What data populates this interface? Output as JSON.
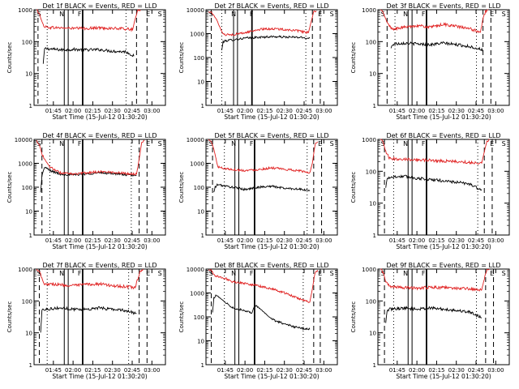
{
  "chart_data": [
    {
      "type": "line",
      "title": "Det 1f BLACK = Events, RED = LLD",
      "ylabel": "Counts/sec",
      "xlabel": "Start Time (15-Jul-12 01:30:20)",
      "xticks": [
        "01:45",
        "02:00",
        "02:15",
        "02:30",
        "02:45",
        "03:00"
      ],
      "xtick_values": [
        14.7,
        29.7,
        44.7,
        59.7,
        74.7,
        89.7
      ],
      "xlim": [
        0,
        100
      ],
      "yscale": "log",
      "ylim": [
        1,
        1000
      ],
      "yticks": [
        "1",
        "10",
        "100",
        "1000"
      ],
      "markers": [
        "S",
        "N",
        "F",
        "E",
        "S"
      ],
      "series": [
        {
          "name": "BLACK = Events",
          "color": "#000000",
          "x": [
            7,
            8,
            10,
            20,
            30,
            40,
            50,
            60,
            70,
            76
          ],
          "values": [
            20,
            60,
            60,
            55,
            57,
            55,
            56,
            50,
            48,
            35
          ]
        },
        {
          "name": "RED = LLD",
          "color": "#e02020",
          "x": [
            2,
            4,
            6,
            8,
            10,
            20,
            30,
            40,
            50,
            60,
            70,
            75,
            77,
            79,
            81
          ],
          "values": [
            1000,
            800,
            400,
            300,
            280,
            270,
            260,
            260,
            270,
            260,
            250,
            240,
            500,
            1000,
            1000
          ]
        }
      ],
      "vlines": {
        "dashed": [
          3,
          78,
          86
        ],
        "dotted": [
          10,
          70
        ],
        "solid": [
          23,
          26,
          37
        ]
      }
    },
    {
      "type": "line",
      "title": "Det 2f BLACK = Events, RED = LLD",
      "ylabel": "Counts/sec",
      "xlabel": "Start Time (15-Jul-12 01:30:20)",
      "xticks": [
        "01:45",
        "02:00",
        "02:15",
        "02:30",
        "02:45",
        "03:00"
      ],
      "xtick_values": [
        14.7,
        29.7,
        44.7,
        59.7,
        74.7,
        89.7
      ],
      "xlim": [
        0,
        100
      ],
      "yscale": "log",
      "ylim": [
        1,
        10000
      ],
      "yticks": [
        "1",
        "10",
        "100",
        "1000",
        "10000"
      ],
      "markers": [
        "S",
        "N",
        "F",
        "E",
        "S"
      ],
      "series": [
        {
          "name": "BLACK = Events",
          "color": "#000000",
          "x": [
            12,
            13,
            15,
            20,
            30,
            40,
            50,
            60,
            70,
            79
          ],
          "values": [
            200,
            450,
            500,
            550,
            650,
            700,
            750,
            720,
            700,
            650
          ]
        },
        {
          "name": "RED = LLD",
          "color": "#e02020",
          "x": [
            2,
            4,
            8,
            12,
            15,
            20,
            30,
            40,
            50,
            60,
            70,
            78,
            80,
            82,
            84
          ],
          "values": [
            8000,
            8000,
            4000,
            1200,
            900,
            900,
            1100,
            1500,
            1600,
            1500,
            1300,
            1100,
            3000,
            8000,
            9000
          ]
        }
      ],
      "vlines": {
        "dashed": [
          4,
          81,
          87
        ],
        "dotted": [
          12,
          76
        ],
        "solid": [
          21,
          24,
          35
        ]
      }
    },
    {
      "type": "line",
      "title": "Det 3f BLACK = Events, RED = LLD",
      "ylabel": "Counts/sec",
      "xlabel": "Start Time (15-Jul-12 01:30:20)",
      "xticks": [
        "01:45",
        "02:00",
        "02:15",
        "02:30",
        "02:45",
        "03:00"
      ],
      "xtick_values": [
        14.7,
        29.7,
        44.7,
        59.7,
        74.7,
        89.7
      ],
      "xlim": [
        0,
        100
      ],
      "yscale": "log",
      "ylim": [
        1,
        1000
      ],
      "yticks": [
        "1",
        "10",
        "100",
        "1000"
      ],
      "markers": [
        "S",
        "N",
        "F",
        "E",
        "S"
      ],
      "series": [
        {
          "name": "BLACK = Events",
          "color": "#000000",
          "x": [
            10,
            11,
            13,
            20,
            30,
            40,
            50,
            60,
            70,
            80
          ],
          "values": [
            60,
            80,
            85,
            90,
            85,
            80,
            90,
            80,
            70,
            55
          ]
        },
        {
          "name": "RED = LLD",
          "color": "#e02020",
          "x": [
            2,
            4,
            7,
            10,
            13,
            20,
            30,
            40,
            50,
            60,
            70,
            78,
            80,
            82,
            84
          ],
          "values": [
            1000,
            800,
            400,
            260,
            250,
            280,
            320,
            280,
            350,
            300,
            250,
            200,
            500,
            900,
            1000
          ]
        }
      ],
      "vlines": {
        "dashed": [
          7,
          80,
          86
        ],
        "dotted": [
          13,
          75
        ],
        "solid": [
          23,
          26,
          37
        ]
      }
    },
    {
      "type": "line",
      "title": "Det 4f BLACK = Events, RED = LLD",
      "ylabel": "Counts/sec",
      "xlabel": "Start Time (15-Jul-12 01:30:20)",
      "xticks": [
        "01:45",
        "02:00",
        "02:15",
        "02:30",
        "02:45",
        "03:00"
      ],
      "xtick_values": [
        14.7,
        29.7,
        44.7,
        59.7,
        74.7,
        89.7
      ],
      "xlim": [
        0,
        100
      ],
      "yscale": "log",
      "ylim": [
        1,
        10000
      ],
      "yticks": [
        "1",
        "10",
        "100",
        "1000",
        "10000"
      ],
      "markers": [
        "S",
        "N",
        "F",
        "E",
        "S"
      ],
      "series": [
        {
          "name": "BLACK = Events",
          "color": "#000000",
          "x": [
            5,
            6,
            8,
            12,
            20,
            30,
            40,
            50,
            60,
            70,
            78
          ],
          "values": [
            60,
            300,
            700,
            500,
            350,
            330,
            360,
            400,
            380,
            330,
            300
          ]
        },
        {
          "name": "RED = LLD",
          "color": "#e02020",
          "x": [
            2,
            4,
            6,
            8,
            12,
            20,
            30,
            40,
            50,
            60,
            70,
            78,
            80,
            82,
            84
          ],
          "values": [
            9000,
            6000,
            2500,
            1500,
            700,
            400,
            350,
            400,
            450,
            420,
            380,
            350,
            1500,
            8000,
            9000
          ]
        }
      ],
      "vlines": {
        "dashed": [
          6,
          80,
          86
        ],
        "dotted": [
          12,
          74
        ],
        "solid": [
          23,
          26,
          37
        ]
      }
    },
    {
      "type": "line",
      "title": "Det 5f BLACK = Events, RED = LLD",
      "ylabel": "Counts/sec",
      "xlabel": "Start Time (15-Jul-12 01:30:20)",
      "xticks": [
        "01:45",
        "02:00",
        "02:15",
        "02:30",
        "02:45",
        "03:00"
      ],
      "xtick_values": [
        14.7,
        29.7,
        44.7,
        59.7,
        74.7,
        89.7
      ],
      "xlim": [
        0,
        100
      ],
      "yscale": "log",
      "ylim": [
        1,
        10000
      ],
      "yticks": [
        "1",
        "10",
        "100",
        "1000",
        "10000"
      ],
      "markers": [
        "S",
        "N",
        "F",
        "E",
        "S"
      ],
      "series": [
        {
          "name": "BLACK = Events",
          "color": "#000000",
          "x": [
            6,
            7,
            9,
            15,
            20,
            30,
            40,
            50,
            60,
            70,
            79
          ],
          "values": [
            60,
            100,
            130,
            110,
            100,
            80,
            100,
            110,
            90,
            85,
            70
          ]
        },
        {
          "name": "RED = LLD",
          "color": "#e02020",
          "x": [
            2,
            4,
            6,
            9,
            15,
            20,
            30,
            40,
            50,
            60,
            70,
            79,
            81,
            83,
            85
          ],
          "values": [
            10000,
            8000,
            4000,
            700,
            600,
            550,
            500,
            550,
            650,
            550,
            500,
            400,
            1000,
            6000,
            8000
          ]
        }
      ],
      "vlines": {
        "dashed": [
          5,
          82,
          88
        ],
        "dotted": [
          14,
          77
        ],
        "solid": [
          22,
          25,
          37
        ]
      }
    },
    {
      "type": "line",
      "title": "Det 6f BLACK = Events, RED = LLD",
      "ylabel": "Counts/sec",
      "xlabel": "Start Time (15-Jul-12 01:30:20)",
      "xticks": [
        "01:45",
        "02:00",
        "02:15",
        "02:30",
        "02:45",
        "03:00"
      ],
      "xtick_values": [
        14.7,
        29.7,
        44.7,
        59.7,
        74.7,
        89.7
      ],
      "xlim": [
        0,
        100
      ],
      "yscale": "log",
      "ylim": [
        1,
        1000
      ],
      "yticks": [
        "1",
        "10",
        "100",
        "1000"
      ],
      "markers": [
        "S",
        "N",
        "F",
        "E",
        "S"
      ],
      "series": [
        {
          "name": "BLACK = Events",
          "color": "#000000",
          "x": [
            6,
            7,
            9,
            20,
            30,
            40,
            50,
            60,
            70,
            79
          ],
          "values": [
            30,
            60,
            65,
            70,
            60,
            55,
            50,
            45,
            40,
            25
          ]
        },
        {
          "name": "RED = LLD",
          "color": "#e02020",
          "x": [
            2,
            4,
            6,
            9,
            20,
            30,
            40,
            50,
            60,
            70,
            79,
            81,
            83,
            85
          ],
          "values": [
            1000,
            800,
            400,
            250,
            240,
            230,
            220,
            210,
            200,
            190,
            180,
            400,
            900,
            1000
          ]
        }
      ],
      "vlines": {
        "dashed": [
          5,
          81,
          87
        ],
        "dotted": [
          12,
          76
        ],
        "solid": [
          23,
          26,
          37
        ]
      }
    },
    {
      "type": "line",
      "title": "Det 7f BLACK = Events, RED = LLD",
      "ylabel": "Counts/sec",
      "xlabel": "Start Time (15-Jul-12 01:30:20)",
      "xticks": [
        "01:45",
        "02:00",
        "02:15",
        "02:30",
        "02:45",
        "03:00"
      ],
      "xtick_values": [
        14.7,
        29.7,
        44.7,
        59.7,
        74.7,
        89.7
      ],
      "xlim": [
        0,
        100
      ],
      "yscale": "log",
      "ylim": [
        1,
        1000
      ],
      "yticks": [
        "1",
        "10",
        "100",
        "1000"
      ],
      "markers": [
        "S",
        "N",
        "F",
        "E",
        "S"
      ],
      "series": [
        {
          "name": "BLACK = Events",
          "color": "#000000",
          "x": [
            5,
            6,
            8,
            20,
            30,
            40,
            50,
            60,
            70,
            78
          ],
          "values": [
            10,
            50,
            55,
            60,
            55,
            55,
            60,
            55,
            50,
            40
          ]
        },
        {
          "name": "RED = LLD",
          "color": "#e02020",
          "x": [
            2,
            4,
            6,
            8,
            20,
            30,
            40,
            50,
            60,
            70,
            77,
            79,
            81,
            83
          ],
          "values": [
            1000,
            900,
            500,
            350,
            320,
            300,
            330,
            340,
            300,
            280,
            260,
            500,
            900,
            1000
          ]
        }
      ],
      "vlines": {
        "dashed": [
          4,
          80,
          86
        ],
        "dotted": [
          10,
          72
        ],
        "solid": [
          23,
          26,
          37
        ]
      }
    },
    {
      "type": "line",
      "title": "Det 8f BLACK = Events, RED = LLD",
      "ylabel": "Counts/sec",
      "xlabel": "Start Time (15-Jul-12 01:30:20)",
      "xticks": [
        "01:45",
        "02:00",
        "02:15",
        "02:30",
        "02:45",
        "03:00"
      ],
      "xtick_values": [
        14.7,
        29.7,
        44.7,
        59.7,
        74.7,
        89.7
      ],
      "xlim": [
        0,
        100
      ],
      "yscale": "log",
      "ylim": [
        1,
        10000
      ],
      "yticks": [
        "1",
        "10",
        "100",
        "1000",
        "10000"
      ],
      "markers": [
        "S",
        "N",
        "F",
        "E",
        "S"
      ],
      "series": [
        {
          "name": "BLACK = Events",
          "color": "#000000",
          "x": [
            5,
            6,
            8,
            15,
            20,
            30,
            35,
            37,
            40,
            50,
            60,
            70,
            79
          ],
          "values": [
            150,
            600,
            800,
            400,
            250,
            180,
            150,
            300,
            250,
            80,
            50,
            35,
            30
          ]
        },
        {
          "name": "RED = LLD",
          "color": "#e02020",
          "x": [
            2,
            4,
            6,
            8,
            15,
            20,
            30,
            40,
            50,
            60,
            70,
            79,
            81,
            83,
            85
          ],
          "values": [
            9000,
            9000,
            6000,
            5000,
            4000,
            3000,
            2500,
            2000,
            1500,
            1000,
            600,
            400,
            1500,
            7000,
            9000
          ]
        }
      ],
      "vlines": {
        "dashed": [
          4,
          82,
          87
        ],
        "dotted": [
          14,
          74
        ],
        "solid": [
          22,
          25,
          37
        ]
      }
    },
    {
      "type": "line",
      "title": "Det 9f BLACK = Events, RED = LLD",
      "ylabel": "Counts/sec",
      "xlabel": "Start Time (15-Jul-12 01:30:20)",
      "xticks": [
        "01:45",
        "02:00",
        "02:15",
        "02:30",
        "02:45",
        "03:00"
      ],
      "xtick_values": [
        14.7,
        29.7,
        44.7,
        59.7,
        74.7,
        89.7
      ],
      "xlim": [
        0,
        100
      ],
      "yscale": "log",
      "ylim": [
        1,
        1000
      ],
      "yticks": [
        "1",
        "10",
        "100",
        "1000"
      ],
      "markers": [
        "S",
        "N",
        "F",
        "E",
        "S"
      ],
      "series": [
        {
          "name": "BLACK = Events",
          "color": "#000000",
          "x": [
            6,
            7,
            9,
            20,
            30,
            40,
            50,
            60,
            70,
            79
          ],
          "values": [
            20,
            50,
            55,
            60,
            55,
            60,
            55,
            50,
            45,
            30
          ]
        },
        {
          "name": "RED = LLD",
          "color": "#e02020",
          "x": [
            2,
            4,
            6,
            9,
            20,
            30,
            40,
            50,
            60,
            70,
            79,
            81,
            83,
            85
          ],
          "values": [
            1000,
            800,
            400,
            280,
            260,
            250,
            270,
            260,
            250,
            240,
            220,
            500,
            900,
            1000
          ]
        }
      ],
      "vlines": {
        "dashed": [
          5,
          82,
          88
        ],
        "dotted": [
          12,
          75
        ],
        "solid": [
          23,
          26,
          37
        ]
      }
    }
  ]
}
